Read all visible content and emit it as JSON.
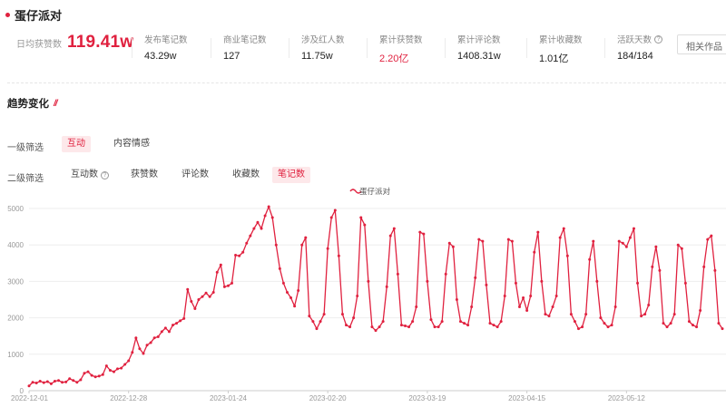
{
  "title": "蛋仔派对",
  "daily": {
    "label": "日均获赞数",
    "value": "119.41w"
  },
  "stats": [
    {
      "label": "发布笔记数",
      "value": "43.29w",
      "red": false,
      "help": false
    },
    {
      "label": "商业笔记数",
      "value": "127",
      "red": false,
      "help": false
    },
    {
      "label": "涉及红人数",
      "value": "11.75w",
      "red": false,
      "help": false
    },
    {
      "label": "累计获赞数",
      "value": "2.20亿",
      "red": true,
      "help": false
    },
    {
      "label": "累计评论数",
      "value": "1408.31w",
      "red": false,
      "help": false
    },
    {
      "label": "累计收藏数",
      "value": "1.01亿",
      "red": false,
      "help": false
    },
    {
      "label": "活跃天数",
      "value": "184/184",
      "red": false,
      "help": true
    }
  ],
  "related_button": "相关作品",
  "section_title": "趋势变化",
  "filters": {
    "level1": {
      "label": "一级筛选",
      "options": [
        "互动",
        "内容情感"
      ],
      "active": 0
    },
    "level2": {
      "label": "二级筛选",
      "options": [
        "互动数",
        "获赞数",
        "评论数",
        "收藏数",
        "笔记数"
      ],
      "active": 4,
      "help_index": 0
    }
  },
  "colors": {
    "accent": "#e0213f",
    "grid": "#eeeeee",
    "axis_text": "#999999"
  },
  "chart_data": {
    "type": "line",
    "legend": {
      "position": "top-center"
    },
    "series": [
      {
        "name": "蛋仔派对",
        "color": "#e0213f",
        "values": [
          130,
          230,
          210,
          260,
          220,
          250,
          190,
          260,
          280,
          230,
          240,
          330,
          280,
          230,
          300,
          480,
          520,
          420,
          380,
          400,
          440,
          680,
          560,
          520,
          600,
          620,
          720,
          820,
          1050,
          1450,
          1150,
          1020,
          1250,
          1320,
          1450,
          1480,
          1620,
          1720,
          1620,
          1800,
          1850,
          1920,
          1980,
          2780,
          2450,
          2250,
          2500,
          2580,
          2680,
          2580,
          2700,
          3250,
          3450,
          2850,
          2880,
          2950,
          3720,
          3700,
          3800,
          4050,
          4250,
          4450,
          4620,
          4450,
          4800,
          5050,
          4750,
          4000,
          3350,
          2950,
          2700,
          2550,
          2320,
          2750,
          4000,
          4200,
          2050,
          1900,
          1700,
          1900,
          2100,
          3900,
          4750,
          4950,
          3700,
          2100,
          1800,
          1750,
          2000,
          2600,
          4750,
          4550,
          3000,
          1750,
          1650,
          1750,
          1900,
          2850,
          4250,
          4450,
          3200,
          1800,
          1780,
          1750,
          1900,
          2300,
          4350,
          4300,
          3000,
          1950,
          1750,
          1750,
          1900,
          3200,
          4050,
          3950,
          2500,
          1900,
          1850,
          1800,
          2300,
          3100,
          4150,
          4100,
          2900,
          1850,
          1800,
          1750,
          1900,
          2600,
          4150,
          4100,
          2950,
          2300,
          2550,
          2200,
          2600,
          3800,
          4350,
          3000,
          2100,
          2050,
          2300,
          2600,
          4200,
          4450,
          3700,
          2100,
          1900,
          1700,
          1750,
          2100,
          3600,
          4100,
          3000,
          2000,
          1850,
          1750,
          1800,
          2300,
          4100,
          4050,
          3950,
          4200,
          4450,
          2950,
          2050,
          2100,
          2350,
          3400,
          3950,
          3300,
          1850,
          1750,
          1850,
          2100,
          4000,
          3900,
          2950,
          1900,
          1800,
          1750,
          2200,
          3400,
          4150,
          4250,
          3300,
          1850,
          1700
        ]
      }
    ],
    "x_labels": [
      "2022-12-01",
      "2022-12-28",
      "2023-01-24",
      "2023-02-20",
      "2023-03-19",
      "2023-04-15",
      "2023-05-12"
    ],
    "y_ticks": [
      0,
      1000,
      2000,
      3000,
      4000,
      5000
    ],
    "ylim": [
      0,
      5000
    ],
    "grid": true
  }
}
